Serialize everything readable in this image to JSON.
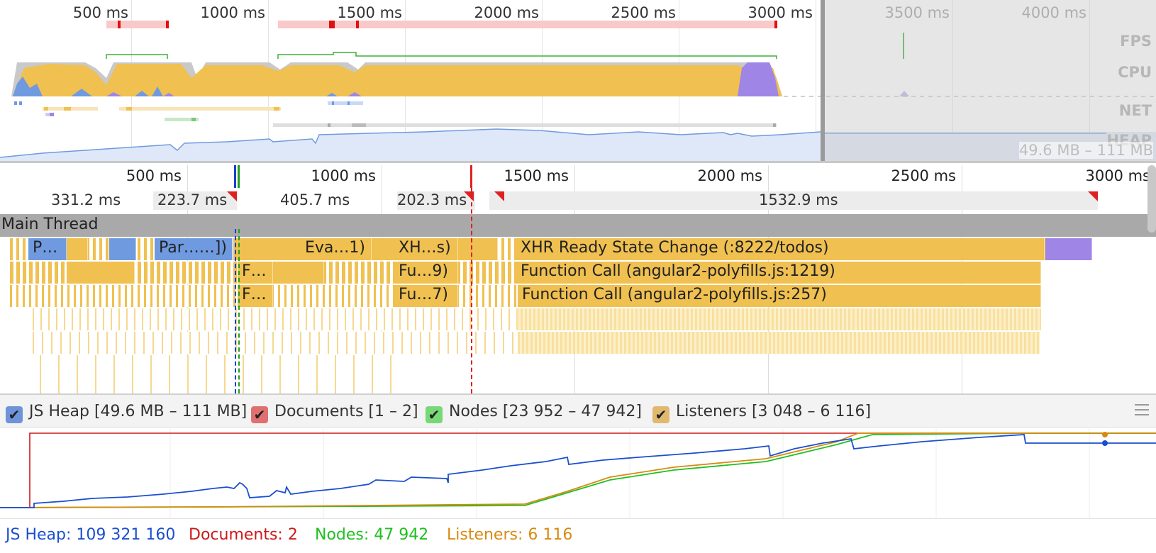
{
  "overview": {
    "ticks": [
      "500 ms",
      "1000 ms",
      "1500 ms",
      "2000 ms",
      "2500 ms",
      "3000 ms",
      "3500 ms",
      "4000 ms"
    ],
    "lanes": [
      "FPS",
      "CPU",
      "NET",
      "HEAP"
    ],
    "heap_range": "49.6 MB – 111 MB"
  },
  "details": {
    "ticks": [
      "500 ms",
      "1000 ms",
      "1500 ms",
      "2000 ms",
      "2500 ms",
      "3000 ms"
    ],
    "frames": [
      "331.2 ms",
      "223.7 ms",
      "405.7 ms",
      "202.3 ms",
      "1532.9 ms"
    ],
    "main_thread_label": "Main Thread",
    "events": {
      "row1": [
        "P…",
        "Par……])",
        "Eva…1)",
        "XH…s)",
        "XHR Ready State Change (:8222/todos)"
      ],
      "row2": [
        "F…",
        "Fu…9)",
        "Function Call (angular2-polyfills.js:1219)"
      ],
      "row3": [
        "F…",
        "Fu…7)",
        "Function Call (angular2-polyfills.js:257)"
      ]
    }
  },
  "counters": {
    "toggles": [
      {
        "label": "JS Heap [49.6 MB – 111 MB]",
        "color": "#6f93d8",
        "checked": true
      },
      {
        "label": "Documents [1 – 2]",
        "color": "#e07070",
        "checked": true
      },
      {
        "label": "Nodes [23 952 – 47 942]",
        "color": "#78d878",
        "checked": true
      },
      {
        "label": "Listeners [3 048 – 6 116]",
        "color": "#e0b870",
        "checked": true
      }
    ],
    "values": [
      {
        "label": "JS Heap: 109 321 160",
        "color": "#1b4fd0"
      },
      {
        "label": "Documents: 2",
        "color": "#d01818"
      },
      {
        "label": "Nodes: 47 942",
        "color": "#20c020"
      },
      {
        "label": "Listeners: 6 116",
        "color": "#d88a10"
      }
    ]
  }
}
